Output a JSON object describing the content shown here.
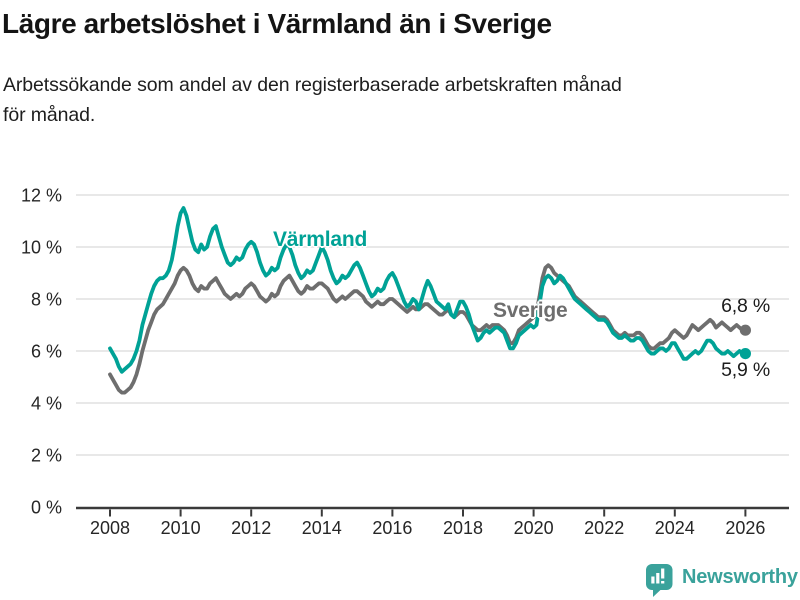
{
  "header": {
    "title": "Lägre arbetslöshet i Värmland än i Sverige",
    "subtitle_line1": "Arbetssökande som andel av den registerbaserade arbetskraften månad",
    "subtitle_line2": "för månad."
  },
  "chart_data": {
    "type": "line",
    "unit": "%",
    "frequency": "monthly",
    "x_range": [
      "2008-01",
      "2026-01"
    ],
    "ylim": [
      0,
      12
    ],
    "grid": "horizontal",
    "colors": {
      "varmland": "#00a296",
      "sverige": "#6e6e6e"
    },
    "y_ticks": [
      {
        "value": 0,
        "label": "0 %"
      },
      {
        "value": 2,
        "label": "2 %"
      },
      {
        "value": 4,
        "label": "4 %"
      },
      {
        "value": 6,
        "label": "6 %"
      },
      {
        "value": 8,
        "label": "8 %"
      },
      {
        "value": 10,
        "label": "10 %"
      },
      {
        "value": 12,
        "label": "12 %"
      }
    ],
    "x_ticks": [
      {
        "year": 2008,
        "label": "2008"
      },
      {
        "year": 2010,
        "label": "2010"
      },
      {
        "year": 2012,
        "label": "2012"
      },
      {
        "year": 2014,
        "label": "2014"
      },
      {
        "year": 2016,
        "label": "2016"
      },
      {
        "year": 2018,
        "label": "2018"
      },
      {
        "year": 2020,
        "label": "2020"
      },
      {
        "year": 2022,
        "label": "2022"
      },
      {
        "year": 2024,
        "label": "2024"
      },
      {
        "year": 2026,
        "label": "2026"
      }
    ],
    "series": [
      {
        "name": "Sverige",
        "color": "#6e6e6e",
        "end_label": "6,8 %",
        "values": [
          5.1,
          4.9,
          4.7,
          4.5,
          4.4,
          4.4,
          4.5,
          4.6,
          4.8,
          5.1,
          5.5,
          6.0,
          6.4,
          6.8,
          7.1,
          7.4,
          7.6,
          7.7,
          7.8,
          8.0,
          8.2,
          8.4,
          8.6,
          8.9,
          9.1,
          9.2,
          9.1,
          8.9,
          8.6,
          8.4,
          8.3,
          8.5,
          8.4,
          8.4,
          8.6,
          8.7,
          8.8,
          8.6,
          8.4,
          8.2,
          8.1,
          8.0,
          8.1,
          8.2,
          8.1,
          8.2,
          8.4,
          8.5,
          8.6,
          8.5,
          8.3,
          8.1,
          8.0,
          7.9,
          8.0,
          8.2,
          8.1,
          8.2,
          8.5,
          8.7,
          8.8,
          8.9,
          8.7,
          8.5,
          8.3,
          8.2,
          8.3,
          8.5,
          8.4,
          8.4,
          8.5,
          8.6,
          8.6,
          8.5,
          8.4,
          8.2,
          8.0,
          7.9,
          8.0,
          8.1,
          8.0,
          8.1,
          8.2,
          8.3,
          8.3,
          8.2,
          8.1,
          7.9,
          7.8,
          7.7,
          7.8,
          7.9,
          7.8,
          7.8,
          7.9,
          8.0,
          8.0,
          7.9,
          7.8,
          7.7,
          7.6,
          7.5,
          7.6,
          7.7,
          7.6,
          7.6,
          7.7,
          7.8,
          7.8,
          7.7,
          7.6,
          7.5,
          7.4,
          7.4,
          7.5,
          7.6,
          7.4,
          7.3,
          7.4,
          7.5,
          7.5,
          7.4,
          7.2,
          7.0,
          6.9,
          6.8,
          6.8,
          6.9,
          7.0,
          6.9,
          7.0,
          7.0,
          7.0,
          6.9,
          6.8,
          6.6,
          6.3,
          6.3,
          6.5,
          6.8,
          6.9,
          7.0,
          7.1,
          7.2,
          7.3,
          7.5,
          8.1,
          8.8,
          9.2,
          9.3,
          9.2,
          9.0,
          8.9,
          8.8,
          8.7,
          8.6,
          8.5,
          8.3,
          8.1,
          8.0,
          7.9,
          7.8,
          7.7,
          7.6,
          7.5,
          7.4,
          7.3,
          7.3,
          7.3,
          7.2,
          7.0,
          6.8,
          6.7,
          6.6,
          6.6,
          6.7,
          6.6,
          6.6,
          6.6,
          6.7,
          6.7,
          6.6,
          6.4,
          6.2,
          6.1,
          6.1,
          6.2,
          6.3,
          6.3,
          6.4,
          6.5,
          6.7,
          6.8,
          6.7,
          6.6,
          6.5,
          6.6,
          6.8,
          7.0,
          6.9,
          6.8,
          6.9,
          7.0,
          7.1,
          7.2,
          7.1,
          6.9,
          7.0,
          7.1,
          7.0,
          6.9,
          6.8,
          6.9,
          7.0,
          6.9,
          6.8,
          6.8
        ]
      },
      {
        "name": "Värmland",
        "color": "#00a296",
        "end_label": "5,9 %",
        "values": [
          6.1,
          5.9,
          5.7,
          5.4,
          5.2,
          5.3,
          5.4,
          5.5,
          5.7,
          6.0,
          6.4,
          7.0,
          7.4,
          7.8,
          8.2,
          8.5,
          8.7,
          8.8,
          8.8,
          8.9,
          9.1,
          9.5,
          10.1,
          10.8,
          11.3,
          11.5,
          11.2,
          10.7,
          10.2,
          9.9,
          9.8,
          10.1,
          9.9,
          10.0,
          10.4,
          10.7,
          10.8,
          10.4,
          10.0,
          9.7,
          9.4,
          9.3,
          9.4,
          9.6,
          9.5,
          9.6,
          9.9,
          10.1,
          10.2,
          10.1,
          9.8,
          9.4,
          9.1,
          8.9,
          9.0,
          9.2,
          9.1,
          9.2,
          9.6,
          9.9,
          10.1,
          10.0,
          9.7,
          9.3,
          9.0,
          8.8,
          8.9,
          9.1,
          9.0,
          9.1,
          9.4,
          9.7,
          10.0,
          9.8,
          9.5,
          9.1,
          8.8,
          8.6,
          8.7,
          8.9,
          8.8,
          8.9,
          9.1,
          9.3,
          9.4,
          9.2,
          8.9,
          8.6,
          8.3,
          8.1,
          8.2,
          8.4,
          8.3,
          8.4,
          8.7,
          8.9,
          9.0,
          8.8,
          8.5,
          8.2,
          7.9,
          7.7,
          7.8,
          8.0,
          7.9,
          7.6,
          8.0,
          8.4,
          8.7,
          8.5,
          8.2,
          7.9,
          7.8,
          7.7,
          7.6,
          7.8,
          7.4,
          7.3,
          7.6,
          7.9,
          7.9,
          7.7,
          7.4,
          7.0,
          6.7,
          6.4,
          6.5,
          6.7,
          6.8,
          6.7,
          6.8,
          6.9,
          6.9,
          6.8,
          6.7,
          6.4,
          6.1,
          6.1,
          6.3,
          6.6,
          6.7,
          6.8,
          6.9,
          7.0,
          6.9,
          7.0,
          7.8,
          8.5,
          8.8,
          8.9,
          8.8,
          8.6,
          8.7,
          8.9,
          8.8,
          8.6,
          8.4,
          8.2,
          8.0,
          7.9,
          7.8,
          7.7,
          7.6,
          7.5,
          7.4,
          7.3,
          7.2,
          7.2,
          7.2,
          7.1,
          6.9,
          6.7,
          6.6,
          6.5,
          6.5,
          6.6,
          6.5,
          6.4,
          6.4,
          6.5,
          6.5,
          6.4,
          6.2,
          6.0,
          5.9,
          5.9,
          6.0,
          6.1,
          6.1,
          6.0,
          6.1,
          6.3,
          6.3,
          6.1,
          5.9,
          5.7,
          5.7,
          5.8,
          5.9,
          6.0,
          5.9,
          6.0,
          6.2,
          6.4,
          6.4,
          6.3,
          6.1,
          6.0,
          5.9,
          5.9,
          6.0,
          5.9,
          5.8,
          5.9,
          6.0,
          5.9,
          5.9
        ]
      }
    ]
  },
  "footer": {
    "brand": "Newsworthy",
    "brand_color": "#3aa29b"
  }
}
